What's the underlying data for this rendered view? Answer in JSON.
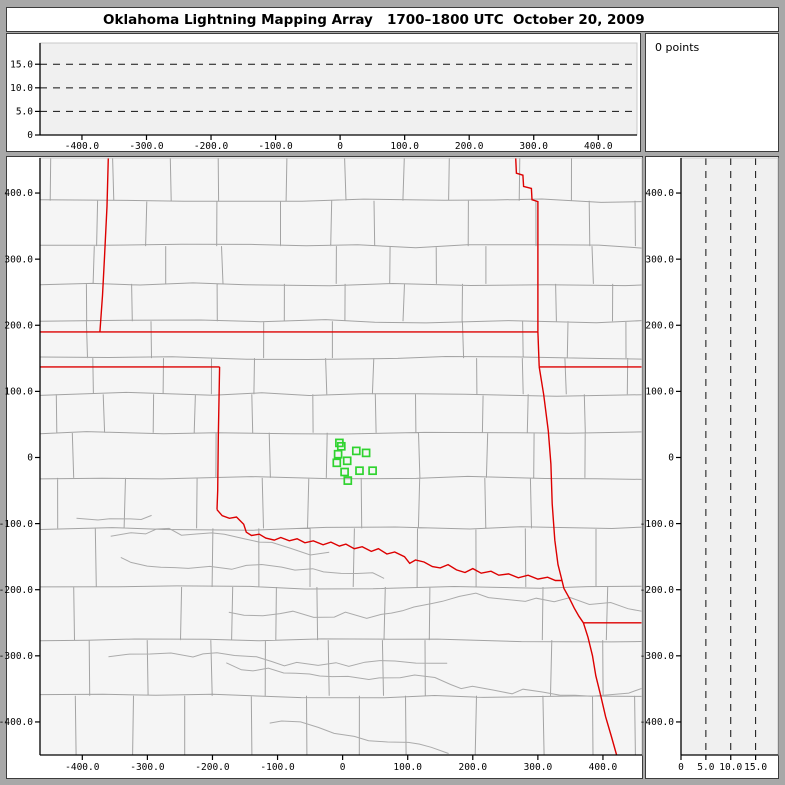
{
  "title": "Oklahoma Lightning Mapping Array   1700–1800 UTC  October 20, 2009",
  "points_panel": {
    "text": "0 points"
  },
  "colors": {
    "frame": "#a8a8a8",
    "panel_bg": "#ffffff",
    "panel_border": "#3c3c3c",
    "plot_bg": "#f0f0f0",
    "map_bg": "#f5f5f5",
    "county_line": "#a3a3a3",
    "river_line": "#ababab",
    "state_border": "#dd0000",
    "station": "#2fd32f",
    "axis": "#000000",
    "dashed_line": "#111111"
  },
  "axes": {
    "ew_range_km": [
      -465,
      460
    ],
    "ns_range_km": [
      -450,
      453
    ],
    "alt_range_km": [
      0,
      19.5
    ],
    "ew_ticks": {
      "values": [
        -400,
        -300,
        -200,
        -100,
        0,
        100,
        200,
        300,
        400
      ],
      "labels": [
        "-400.0",
        "-300.0",
        "-200.0",
        "-100.0",
        "0",
        "100.0",
        "200.0",
        "300.0",
        "400.0"
      ]
    },
    "ns_ticks": {
      "values": [
        400,
        300,
        200,
        100,
        0,
        -100,
        -200,
        -300,
        -400
      ],
      "labels": [
        "400.0",
        "300.0",
        "200.0",
        "100.0",
        "0",
        "-100.0",
        "-200.0",
        "-300.0",
        "-400.0"
      ]
    },
    "alt_ticks": {
      "values": [
        0,
        5,
        10,
        15
      ],
      "labels": [
        "0",
        "5.0",
        "10.0",
        "15.0"
      ]
    },
    "alt_dashed_km": [
      5,
      10,
      15
    ]
  },
  "map": {
    "stations_km": [
      [
        -5,
        22
      ],
      [
        -2,
        17
      ],
      [
        -7,
        5
      ],
      [
        21,
        10
      ],
      [
        36,
        7
      ],
      [
        -9,
        -8
      ],
      [
        7,
        -5
      ],
      [
        26,
        -20
      ],
      [
        46,
        -20
      ],
      [
        3,
        -22
      ],
      [
        8,
        -35
      ]
    ],
    "state_borders_km": [
      {
        "name": "kansas-oklahoma-37n",
        "points": [
          [
            -465,
            190
          ],
          [
            300,
            190
          ]
        ]
      },
      {
        "name": "colorado-kansas-102w",
        "points": [
          [
            -360,
            453
          ],
          [
            -362,
            380
          ],
          [
            -366,
            300
          ],
          [
            -369,
            245
          ],
          [
            -373,
            190
          ]
        ]
      },
      {
        "name": "oklahoma-panhandle-36.5n",
        "points": [
          [
            -465,
            137
          ],
          [
            -189,
            137
          ]
        ]
      },
      {
        "name": "texas-oklahoma-100w",
        "points": [
          [
            -189,
            137
          ],
          [
            -191,
            30
          ],
          [
            -192,
            -50
          ],
          [
            -193,
            -79
          ]
        ]
      },
      {
        "name": "red-river-tx-ok",
        "points": [
          [
            -193,
            -79
          ],
          [
            -185,
            -88
          ],
          [
            -174,
            -92
          ],
          [
            -163,
            -90
          ],
          [
            -152,
            -101
          ],
          [
            -148,
            -113
          ],
          [
            -140,
            -118
          ],
          [
            -128,
            -116
          ],
          [
            -118,
            -122
          ],
          [
            -105,
            -125
          ],
          [
            -95,
            -121
          ],
          [
            -82,
            -126
          ],
          [
            -70,
            -123
          ],
          [
            -58,
            -129
          ],
          [
            -45,
            -126
          ],
          [
            -30,
            -132
          ],
          [
            -18,
            -128
          ],
          [
            -5,
            -134
          ],
          [
            5,
            -131
          ],
          [
            18,
            -138
          ],
          [
            30,
            -135
          ],
          [
            44,
            -142
          ],
          [
            55,
            -138
          ],
          [
            68,
            -146
          ],
          [
            80,
            -143
          ],
          [
            95,
            -150
          ],
          [
            103,
            -160
          ],
          [
            112,
            -155
          ],
          [
            125,
            -158
          ],
          [
            138,
            -165
          ],
          [
            150,
            -167
          ],
          [
            162,
            -162
          ],
          [
            175,
            -170
          ],
          [
            188,
            -174
          ],
          [
            200,
            -168
          ],
          [
            213,
            -175
          ],
          [
            228,
            -172
          ],
          [
            240,
            -178
          ],
          [
            255,
            -176
          ],
          [
            270,
            -182
          ],
          [
            285,
            -178
          ],
          [
            300,
            -184
          ],
          [
            315,
            -181
          ],
          [
            327,
            -186
          ],
          [
            337,
            -186
          ]
        ]
      },
      {
        "name": "kansas-missouri",
        "points": [
          [
            266,
            453
          ],
          [
            267,
            430
          ],
          [
            277,
            427
          ],
          [
            278,
            410
          ],
          [
            290,
            407
          ],
          [
            291,
            390
          ],
          [
            300,
            387
          ],
          [
            300,
            190
          ]
        ]
      },
      {
        "name": "oklahoma-missouri",
        "points": [
          [
            300,
            190
          ],
          [
            302,
            137
          ]
        ]
      },
      {
        "name": "missouri-arkansas-36.5n",
        "points": [
          [
            302,
            137
          ],
          [
            460,
            137
          ]
        ]
      },
      {
        "name": "oklahoma-arkansas",
        "points": [
          [
            302,
            137
          ],
          [
            309,
            95
          ],
          [
            316,
            40
          ],
          [
            320,
            -10
          ],
          [
            322,
            -70
          ],
          [
            326,
            -125
          ],
          [
            331,
            -162
          ],
          [
            337,
            -186
          ]
        ]
      },
      {
        "name": "arkansas-texas-corner",
        "points": [
          [
            337,
            -186
          ],
          [
            340,
            -198
          ],
          [
            348,
            -212
          ],
          [
            356,
            -228
          ],
          [
            363,
            -240
          ],
          [
            370,
            -250
          ]
        ]
      },
      {
        "name": "texas-arkansas-33n",
        "points": [
          [
            370,
            -250
          ],
          [
            460,
            -250
          ]
        ]
      },
      {
        "name": "texas-louisiana",
        "points": [
          [
            370,
            -250
          ],
          [
            377,
            -272
          ],
          [
            384,
            -300
          ],
          [
            389,
            -330
          ],
          [
            397,
            -362
          ],
          [
            404,
            -392
          ],
          [
            413,
            -422
          ],
          [
            421,
            -450
          ]
        ]
      }
    ]
  }
}
